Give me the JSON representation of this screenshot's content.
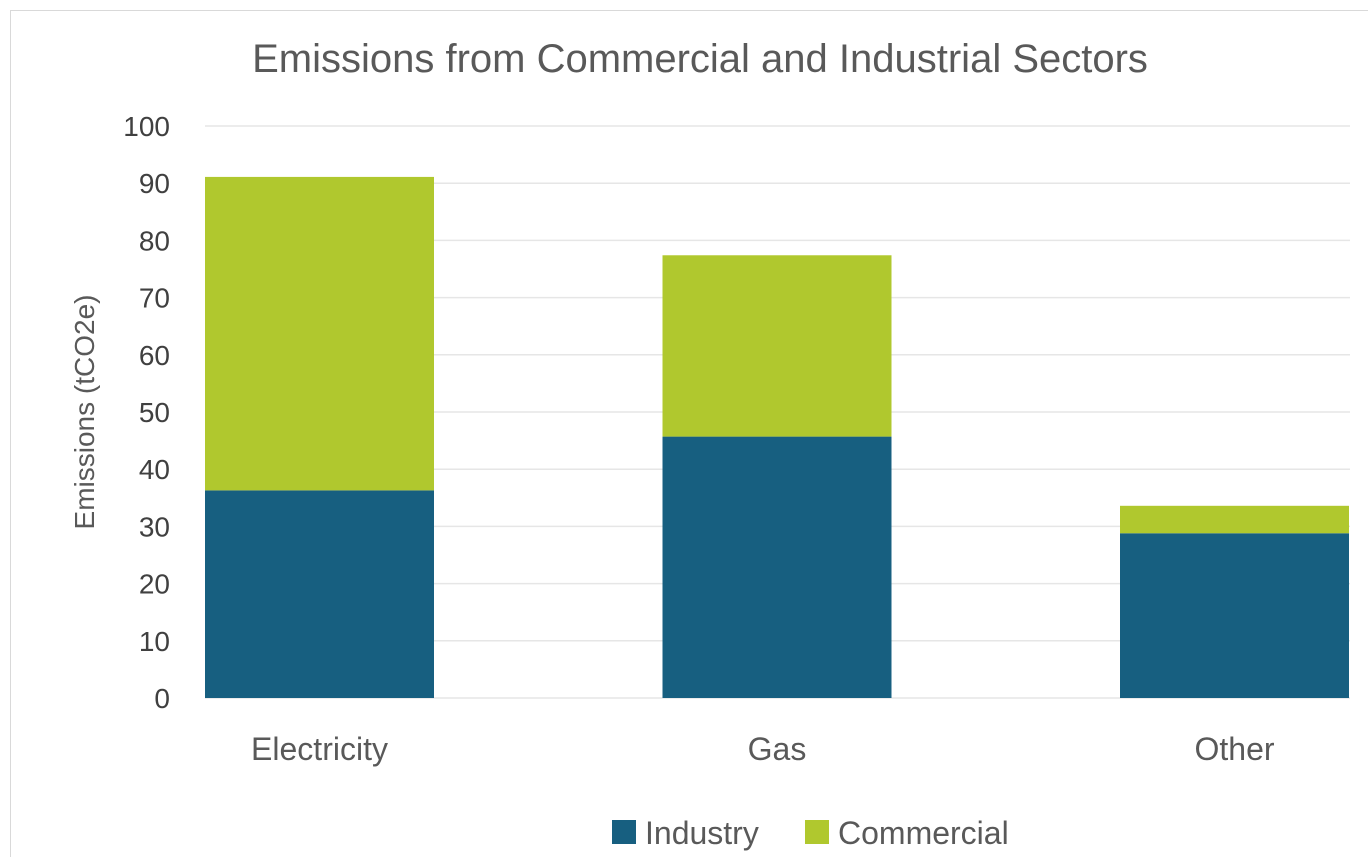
{
  "chart_data": {
    "type": "bar",
    "stacked": true,
    "title": "Emissions from Commercial and Industrial Sectors",
    "xlabel": "",
    "ylabel": "Emissions (tCO2e)",
    "ylim": [
      0,
      100
    ],
    "yticks": [
      0,
      10,
      20,
      30,
      40,
      50,
      60,
      70,
      80,
      90,
      100
    ],
    "grid": true,
    "legend_position": "bottom",
    "categories": [
      "Electricity",
      "Gas",
      "Other"
    ],
    "series": [
      {
        "name": "Industry",
        "values": [
          36.3,
          45.7,
          28.8
        ],
        "color": "#175f80"
      },
      {
        "name": "Commercial",
        "values": [
          54.8,
          31.7,
          4.8
        ],
        "color": "#b0c82e"
      }
    ]
  }
}
